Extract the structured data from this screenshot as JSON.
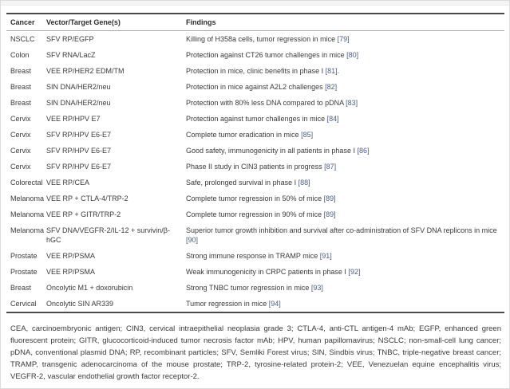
{
  "panel": {
    "table": {
      "headers": [
        "Cancer",
        "Vector/Target Gene(s)",
        "Findings"
      ],
      "rows": [
        {
          "cancer": "NSCLC",
          "vector": "SFV RP/EGFP",
          "finding": "Killing of H358a cells, tumor regression in mice",
          "ref": "[79]",
          "after": ""
        },
        {
          "cancer": "Colon",
          "vector": "SFV RNA/LacZ",
          "finding": "Protection against CT26 tumor challenges in mice",
          "ref": "[80]",
          "after": ""
        },
        {
          "cancer": "Breast",
          "vector": "VEE RP/HER2 EDM/TM",
          "finding": "Protection in mice, clinic benefits in phase I",
          "ref": "[81]",
          "after": "."
        },
        {
          "cancer": "Breast",
          "vector": "SIN DNA/HER2/neu",
          "finding": "Protection in mice against A2L2 challenges",
          "ref": "[82]",
          "after": ""
        },
        {
          "cancer": "Breast",
          "vector": "SIN DNA/HER2/neu",
          "finding": "Protection with 80% less DNA compared to pDNA",
          "ref": "[83]",
          "after": ""
        },
        {
          "cancer": "Cervix",
          "vector": "VEE RP/HPV E7",
          "finding": "Protection against tumor challenges in mice",
          "ref": "[84]",
          "after": ""
        },
        {
          "cancer": "Cervix",
          "vector": "SFV RP/HPV E6-E7",
          "finding": "Complete tumor eradication in mice",
          "ref": "[85]",
          "after": ""
        },
        {
          "cancer": "Cervix",
          "vector": "SFV RP/HPV E6-E7",
          "finding": "Good safety, immunogenicity in all patients in phase I",
          "ref": "[86]",
          "after": ""
        },
        {
          "cancer": "Cervix",
          "vector": "SFV RP/HPV E6-E7",
          "finding": "Phase II study in CIN3 patients in progress",
          "ref": "[87]",
          "after": ""
        },
        {
          "cancer": "Colorectal",
          "vector": "VEE RP/CEA",
          "finding": "Safe, prolonged survival in phase I",
          "ref": "[88]",
          "after": ""
        },
        {
          "cancer": "Melanoma",
          "vector": "VEE RP + CTLA-4/TRP-2",
          "finding": "Complete tumor regression in 50% of mice",
          "ref": "[89]",
          "after": ""
        },
        {
          "cancer": "Melanoma",
          "vector": "VEE RP + GITR/TRP-2",
          "finding": "Complete tumor regression in 90% of mice",
          "ref": "[89]",
          "after": ""
        },
        {
          "cancer": "Melanoma",
          "vector": "SFV DNA/VEGFR-2/IL-12 + survivin/β-hGC",
          "finding": "Superior tumor growth inhibition and survival after co-administration of SFV DNA replicons in mice",
          "ref": "[90]",
          "after": ""
        },
        {
          "cancer": "Prostate",
          "vector": "VEE RP/PSMA",
          "finding": "Strong immune response in TRAMP mice",
          "ref": "[91]",
          "after": ""
        },
        {
          "cancer": "Prostate",
          "vector": "VEE RP/PSMA",
          "finding": "Weak immunogenicity in CRPC patients in phase I",
          "ref": "[92]",
          "after": ""
        },
        {
          "cancer": "Breast",
          "vector": "Oncolytic M1 + doxorubicin",
          "finding": "Strong TNBC tumor regression in mice",
          "ref": "[93]",
          "after": ""
        },
        {
          "cancer": "Cervical",
          "vector": "Oncolytic SIN AR339",
          "finding": "Tumor regression in mice",
          "ref": "[94]",
          "after": ""
        }
      ]
    },
    "footnote": "CEA, carcinoembryonic antigen; CIN3, cervical intraepithelial neoplasia grade 3; CTLA-4, anti-CTL antigen-4 mAb; EGFP, enhanced green fluorescent protein; GITR, glucocorticoid-induced tumor necrosis factor mAb; HPV, human papillomavirus; NSCLC; non-small-cell lung cancer; pDNA, conventional plasmid DNA; RP, recombinant particles; SFV, Semliki Forest virus; SIN, Sindbis virus; TNBC, triple-negative breast cancer; TRAMP, transgenic adenocarcinoma of the mouse prostate; TRP-2, tyrosine-related protein-2; VEE, Venezuelan equine encephalitis virus; VEGFR-2, vascular endothelial growth factor receptor-2.",
    "colors": {
      "reference_link": "#4a5d82",
      "body_text": "#3a3a3a",
      "border_dark": "#4a4a4a"
    }
  }
}
